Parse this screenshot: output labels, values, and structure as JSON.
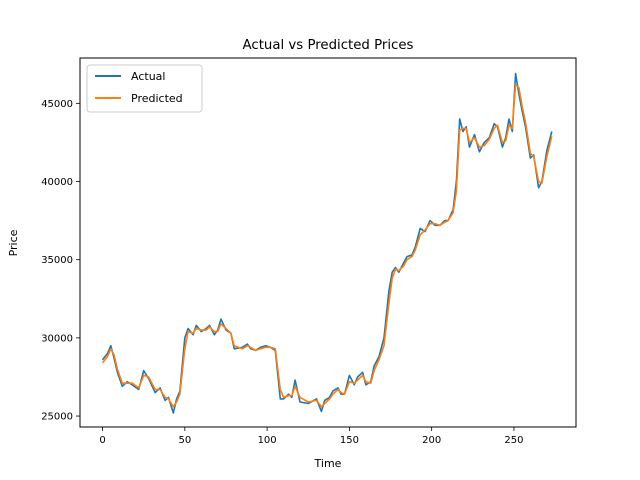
{
  "chart_data": {
    "type": "line",
    "title": "Actual vs Predicted Prices",
    "xlabel": "Time",
    "ylabel": "Price",
    "xlim": [
      -13.7,
      287.7
    ],
    "ylim": [
      24300,
      47900
    ],
    "xticks": [
      0,
      50,
      100,
      150,
      200,
      250
    ],
    "yticks": [
      25000,
      30000,
      35000,
      40000,
      45000
    ],
    "xtick_labels": [
      "0",
      "50",
      "100",
      "150",
      "200",
      "250"
    ],
    "ytick_labels": [
      "25000",
      "30000",
      "35000",
      "40000",
      "45000"
    ],
    "grid": false,
    "legend": "top-left",
    "colors": {
      "actual": "#1f77b4",
      "predicted": "#ff7f0e"
    },
    "series": [
      {
        "name": "Actual",
        "x": [
          0,
          3,
          5,
          7,
          9,
          12,
          15,
          18,
          22,
          25,
          28,
          32,
          35,
          38,
          40,
          43,
          45,
          47,
          50,
          52,
          55,
          57,
          60,
          63,
          65,
          68,
          70,
          72,
          75,
          78,
          80,
          85,
          88,
          90,
          93,
          96,
          99,
          102,
          105,
          108,
          110,
          113,
          115,
          117,
          120,
          125,
          130,
          133,
          135,
          138,
          140,
          143,
          145,
          147,
          150,
          153,
          155,
          158,
          160,
          163,
          165,
          168,
          171,
          174,
          176,
          178,
          180,
          183,
          185,
          188,
          190,
          193,
          196,
          199,
          202,
          205,
          208,
          210,
          213,
          215,
          217,
          219,
          221,
          223,
          226,
          229,
          232,
          235,
          238,
          240,
          243,
          245,
          247,
          249,
          251,
          253,
          255,
          257,
          260,
          262,
          265,
          267,
          270,
          273
        ],
        "y": [
          28600,
          29000,
          29500,
          28700,
          27800,
          26900,
          27200,
          27000,
          26700,
          27900,
          27400,
          26500,
          26800,
          26000,
          26200,
          25200,
          26100,
          26600,
          30000,
          30600,
          30200,
          30800,
          30400,
          30600,
          30800,
          30200,
          30500,
          31200,
          30500,
          30300,
          29300,
          29400,
          29600,
          29300,
          29200,
          29400,
          29500,
          29400,
          29200,
          26100,
          26100,
          26400,
          26200,
          27300,
          25900,
          25800,
          26100,
          25300,
          26000,
          26200,
          26600,
          26800,
          26400,
          26400,
          27600,
          27000,
          27500,
          27800,
          27000,
          27200,
          28200,
          28800,
          30000,
          33000,
          34200,
          34500,
          34200,
          34800,
          35200,
          35300,
          35800,
          37000,
          36800,
          37500,
          37200,
          37200,
          37500,
          37500,
          38200,
          40000,
          44000,
          43200,
          43500,
          42200,
          43000,
          41900,
          42500,
          42800,
          43700,
          43500,
          42200,
          42800,
          44000,
          43200,
          46900,
          45600,
          44500,
          43500,
          41500,
          41700,
          39600,
          40000,
          42000,
          43200
        ]
      },
      {
        "name": "Predicted",
        "x": [
          0,
          3,
          5,
          7,
          9,
          12,
          15,
          18,
          22,
          25,
          28,
          32,
          35,
          38,
          40,
          43,
          45,
          47,
          50,
          52,
          55,
          57,
          60,
          63,
          65,
          68,
          70,
          72,
          75,
          78,
          80,
          85,
          88,
          90,
          93,
          96,
          99,
          102,
          105,
          108,
          110,
          113,
          115,
          117,
          120,
          125,
          130,
          133,
          135,
          138,
          140,
          143,
          145,
          147,
          150,
          153,
          155,
          158,
          160,
          163,
          165,
          168,
          171,
          174,
          176,
          178,
          180,
          183,
          185,
          188,
          190,
          193,
          196,
          199,
          202,
          205,
          208,
          210,
          213,
          215,
          217,
          219,
          221,
          223,
          226,
          229,
          232,
          235,
          238,
          240,
          243,
          245,
          247,
          249,
          251,
          253,
          255,
          257,
          260,
          262,
          265,
          267,
          270,
          273
        ],
        "y": [
          28400,
          28800,
          29300,
          28900,
          28000,
          27100,
          27100,
          27100,
          26800,
          27600,
          27500,
          26700,
          26700,
          26200,
          26100,
          25600,
          25900,
          26400,
          29300,
          30400,
          30300,
          30600,
          30500,
          30500,
          30700,
          30400,
          30400,
          30900,
          30600,
          30300,
          29500,
          29300,
          29500,
          29400,
          29200,
          29300,
          29400,
          29400,
          29300,
          26700,
          26200,
          26300,
          26300,
          26900,
          26200,
          25900,
          26000,
          25600,
          25800,
          26100,
          26400,
          26700,
          26500,
          26400,
          27200,
          27100,
          27300,
          27600,
          27200,
          27100,
          27900,
          28600,
          29500,
          32200,
          33800,
          34400,
          34300,
          34600,
          35000,
          35200,
          35600,
          36600,
          36900,
          37300,
          37300,
          37200,
          37400,
          37500,
          38000,
          39400,
          43300,
          43400,
          43400,
          42500,
          42800,
          42200,
          42300,
          42700,
          43400,
          43600,
          42500,
          42600,
          43600,
          43400,
          46200,
          46000,
          44800,
          43800,
          41800,
          41600,
          40000,
          39900,
          41600,
          42900
        ]
      }
    ]
  }
}
